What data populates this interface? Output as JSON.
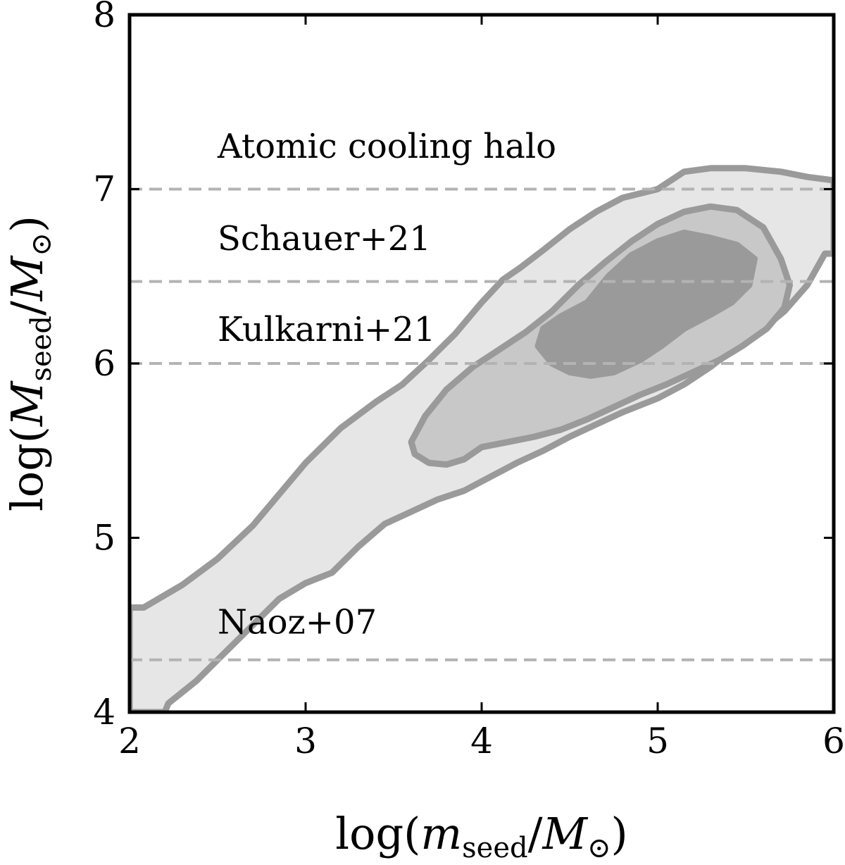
{
  "chart_data": {
    "type": "contour",
    "xlabel": {
      "prefix": "log(",
      "var": "m",
      "sub": "seed",
      "slash": "/",
      "unit": "M",
      "unit_sub": "⊙",
      "suffix": ")"
    },
    "ylabel": {
      "prefix": "log(",
      "var": "M",
      "sub": "seed",
      "slash": "/",
      "unit": "M",
      "unit_sub": "⊙",
      "suffix": ")"
    },
    "xlim": [
      2,
      6
    ],
    "ylim": [
      4,
      8
    ],
    "xticks": [
      2,
      3,
      4,
      5,
      6
    ],
    "yticks": [
      4,
      5,
      6,
      7,
      8
    ],
    "colors": {
      "outer_fill": "#e6e6e6",
      "middle_fill": "#c8c8c8",
      "inner_fill": "#9a9a9a",
      "contour_line": "#9a9a9a",
      "reference_line": "#b3b3b3",
      "axes": "#000000"
    },
    "reference_lines": [
      {
        "name": "Atomic cooling halo",
        "y": 7.0,
        "label_x": 2.5,
        "label_y": 7.18
      },
      {
        "name": "Schauer+21",
        "y": 6.47,
        "label_x": 2.5,
        "label_y": 6.65
      },
      {
        "name": "Kulkarni+21",
        "y": 6.0,
        "label_x": 2.5,
        "label_y": 6.13
      },
      {
        "name": "Naoz+07",
        "y": 4.3,
        "label_x": 2.5,
        "label_y": 4.45
      }
    ],
    "contours": [
      {
        "level": "outer",
        "points": [
          [
            2.0,
            4.6
          ],
          [
            2.08,
            4.6
          ],
          [
            2.3,
            4.73
          ],
          [
            2.5,
            4.88
          ],
          [
            2.7,
            5.07
          ],
          [
            2.85,
            5.25
          ],
          [
            3.0,
            5.43
          ],
          [
            3.2,
            5.63
          ],
          [
            3.4,
            5.78
          ],
          [
            3.55,
            5.88
          ],
          [
            3.7,
            6.02
          ],
          [
            3.85,
            6.17
          ],
          [
            4.0,
            6.35
          ],
          [
            4.12,
            6.48
          ],
          [
            4.22,
            6.55
          ],
          [
            4.35,
            6.65
          ],
          [
            4.5,
            6.77
          ],
          [
            4.65,
            6.87
          ],
          [
            4.8,
            6.95
          ],
          [
            5.0,
            7.0
          ],
          [
            5.15,
            7.1
          ],
          [
            5.3,
            7.12
          ],
          [
            5.5,
            7.12
          ],
          [
            5.7,
            7.1
          ],
          [
            5.85,
            7.07
          ],
          [
            6.0,
            7.05
          ],
          [
            6.0,
            6.63
          ],
          [
            5.95,
            6.63
          ],
          [
            5.85,
            6.45
          ],
          [
            5.72,
            6.3
          ],
          [
            5.6,
            6.2
          ],
          [
            5.45,
            6.1
          ],
          [
            5.3,
            5.98
          ],
          [
            5.15,
            5.88
          ],
          [
            5.0,
            5.8
          ],
          [
            4.8,
            5.72
          ],
          [
            4.65,
            5.65
          ],
          [
            4.5,
            5.58
          ],
          [
            4.35,
            5.5
          ],
          [
            4.2,
            5.43
          ],
          [
            4.05,
            5.35
          ],
          [
            3.9,
            5.27
          ],
          [
            3.75,
            5.22
          ],
          [
            3.6,
            5.15
          ],
          [
            3.45,
            5.08
          ],
          [
            3.3,
            4.95
          ],
          [
            3.15,
            4.8
          ],
          [
            3.0,
            4.74
          ],
          [
            2.85,
            4.65
          ],
          [
            2.7,
            4.5
          ],
          [
            2.52,
            4.32
          ],
          [
            2.38,
            4.18
          ],
          [
            2.22,
            4.05
          ],
          [
            2.2,
            4.0
          ],
          [
            2.0,
            4.0
          ]
        ]
      },
      {
        "level": "middle",
        "points": [
          [
            3.6,
            5.55
          ],
          [
            3.68,
            5.7
          ],
          [
            3.8,
            5.85
          ],
          [
            3.95,
            5.98
          ],
          [
            4.1,
            6.08
          ],
          [
            4.25,
            6.18
          ],
          [
            4.4,
            6.3
          ],
          [
            4.55,
            6.45
          ],
          [
            4.7,
            6.58
          ],
          [
            4.85,
            6.7
          ],
          [
            5.0,
            6.8
          ],
          [
            5.15,
            6.87
          ],
          [
            5.3,
            6.9
          ],
          [
            5.45,
            6.88
          ],
          [
            5.6,
            6.78
          ],
          [
            5.7,
            6.6
          ],
          [
            5.75,
            6.45
          ],
          [
            5.72,
            6.32
          ],
          [
            5.62,
            6.2
          ],
          [
            5.48,
            6.1
          ],
          [
            5.35,
            6.02
          ],
          [
            5.2,
            5.95
          ],
          [
            5.05,
            5.88
          ],
          [
            4.9,
            5.82
          ],
          [
            4.75,
            5.75
          ],
          [
            4.6,
            5.68
          ],
          [
            4.45,
            5.62
          ],
          [
            4.3,
            5.58
          ],
          [
            4.15,
            5.55
          ],
          [
            4.0,
            5.52
          ],
          [
            3.9,
            5.45
          ],
          [
            3.8,
            5.42
          ],
          [
            3.7,
            5.43
          ],
          [
            3.62,
            5.48
          ]
        ]
      },
      {
        "level": "inner",
        "points": [
          [
            4.32,
            6.1
          ],
          [
            4.35,
            6.2
          ],
          [
            4.45,
            6.27
          ],
          [
            4.6,
            6.35
          ],
          [
            4.72,
            6.5
          ],
          [
            4.85,
            6.62
          ],
          [
            5.0,
            6.7
          ],
          [
            5.15,
            6.75
          ],
          [
            5.3,
            6.72
          ],
          [
            5.45,
            6.68
          ],
          [
            5.55,
            6.6
          ],
          [
            5.52,
            6.45
          ],
          [
            5.42,
            6.35
          ],
          [
            5.3,
            6.28
          ],
          [
            5.15,
            6.2
          ],
          [
            5.02,
            6.1
          ],
          [
            4.9,
            6.02
          ],
          [
            4.75,
            5.95
          ],
          [
            4.62,
            5.93
          ],
          [
            4.5,
            5.95
          ],
          [
            4.4,
            6.0
          ]
        ]
      }
    ]
  }
}
